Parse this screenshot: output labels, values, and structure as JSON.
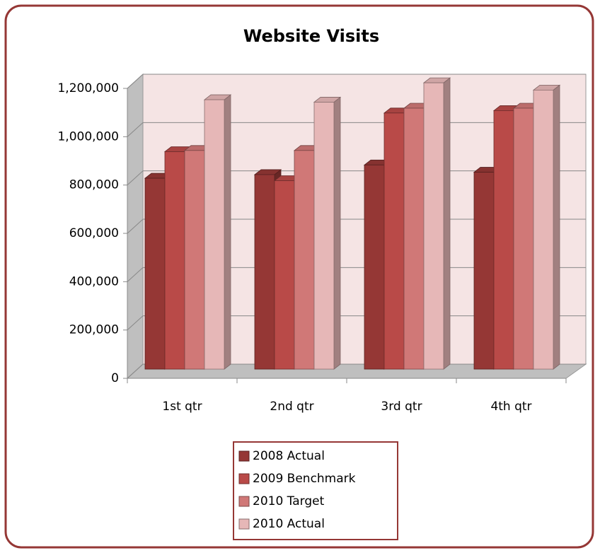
{
  "chart_data": {
    "type": "bar3d",
    "title": "Website Visits",
    "categories": [
      "1st qtr",
      "2nd qtr",
      "3rd qtr",
      "4th qtr"
    ],
    "series": [
      {
        "name": "2008 Actual",
        "color": "#953735",
        "values": [
          790000,
          805000,
          845000,
          815000
        ]
      },
      {
        "name": "2009 Benchmark",
        "color": "#b94a48",
        "values": [
          900000,
          780000,
          1060000,
          1070000
        ]
      },
      {
        "name": "2010 Target",
        "color": "#d07877",
        "values": [
          905000,
          905000,
          1080000,
          1080000
        ]
      },
      {
        "name": "2010 Actual",
        "color": "#e6b7b7",
        "values": [
          1115000,
          1105000,
          1185000,
          1155000
        ]
      }
    ],
    "ylim": [
      0,
      1200000
    ],
    "yticks": [
      0,
      {
        "value": 200000,
        "label": "200,000"
      },
      {
        "value": 400000,
        "label": "400,000"
      },
      {
        "value": 600000,
        "label": "600,000"
      },
      {
        "value": 800000,
        "label": "800,000"
      },
      {
        "value": 1000000,
        "label": "1,000,000"
      },
      {
        "value": 1200000,
        "label": "1,200,000"
      }
    ],
    "grid": true
  }
}
